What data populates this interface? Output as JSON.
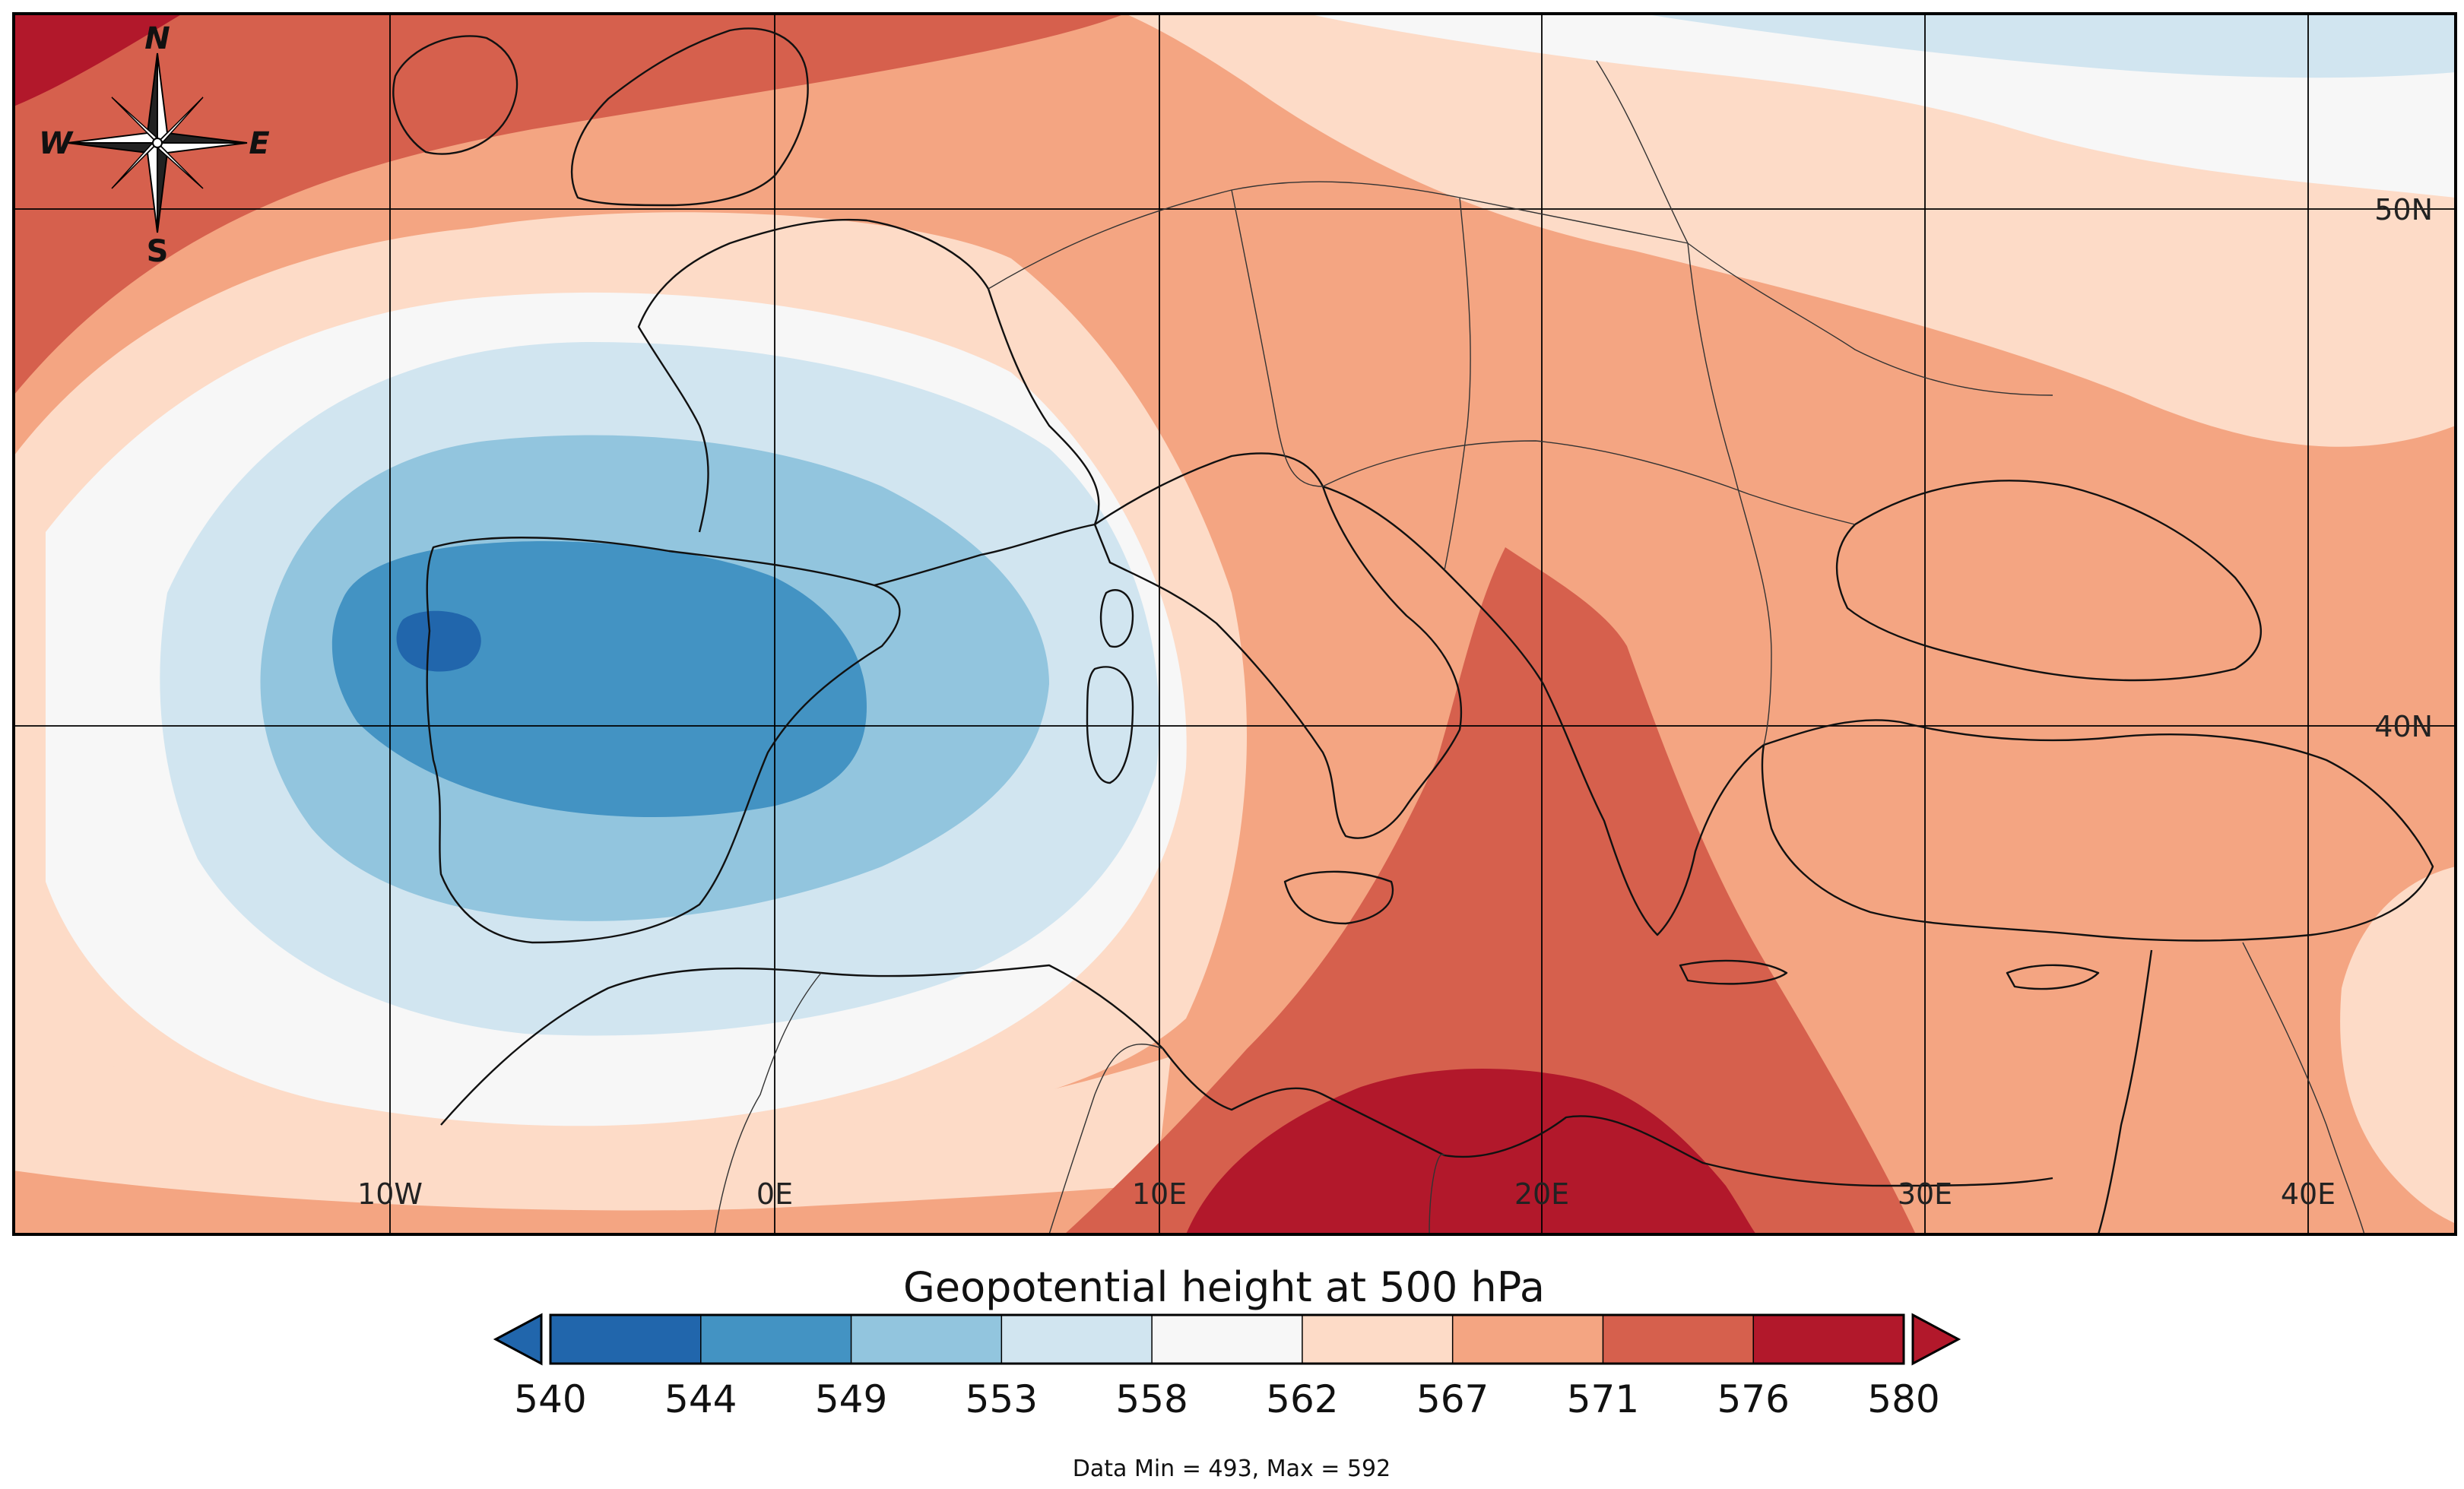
{
  "map": {
    "compass": {
      "n": "N",
      "s": "S",
      "e": "E",
      "w": "W"
    },
    "latitude_labels": [
      {
        "value": 50,
        "text": "50N"
      },
      {
        "value": 40,
        "text": "40N"
      }
    ],
    "longitude_labels": [
      {
        "value": -10,
        "text": "10W"
      },
      {
        "value": 0,
        "text": "0E"
      },
      {
        "value": 10,
        "text": "10E"
      },
      {
        "value": 20,
        "text": "20E"
      },
      {
        "value": 30,
        "text": "30E"
      },
      {
        "value": 40,
        "text": "40E"
      }
    ]
  },
  "colorbar": {
    "title": "Geopotential height at 500 hPa",
    "levels": [
      "540",
      "544",
      "549",
      "553",
      "558",
      "562",
      "567",
      "571",
      "576",
      "580"
    ],
    "colors": [
      "#2166ac",
      "#4393c3",
      "#92c5de",
      "#d1e5f0",
      "#f7f7f7",
      "#fddbc7",
      "#f4a582",
      "#d6604d",
      "#b2182b"
    ],
    "under_color": "#2166ac",
    "over_color": "#b2182b"
  },
  "footer": {
    "stats": "Data Min = 493, Max = 592"
  }
}
